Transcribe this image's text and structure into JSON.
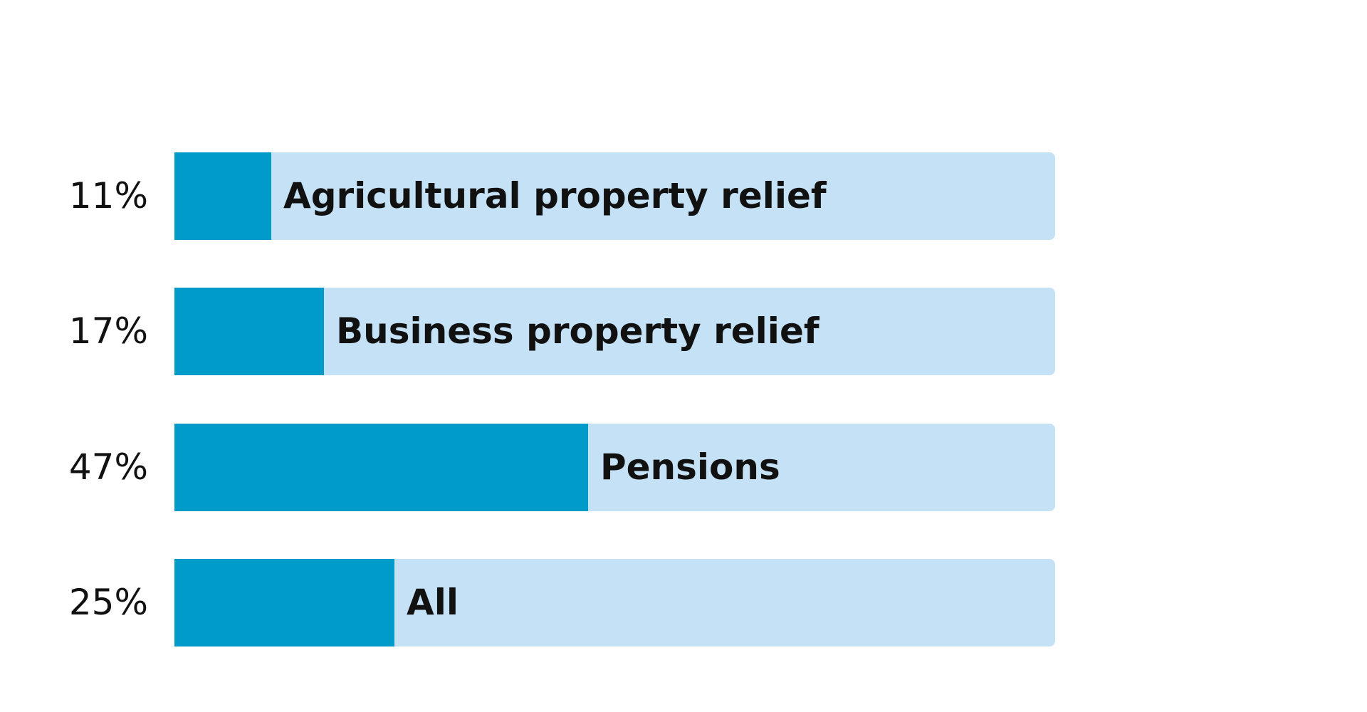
{
  "chart_data": {
    "type": "bar",
    "orientation": "horizontal",
    "categories": [
      "Agricultural property relief",
      "Business property relief",
      "Pensions",
      "All"
    ],
    "values": [
      11,
      17,
      47,
      25
    ],
    "value_labels": [
      "11%",
      "17%",
      "47%",
      "25%"
    ],
    "xlim": [
      0,
      100
    ],
    "grid": false,
    "colors": {
      "fill": "#009bc9",
      "track": "#c4e1f5"
    }
  }
}
